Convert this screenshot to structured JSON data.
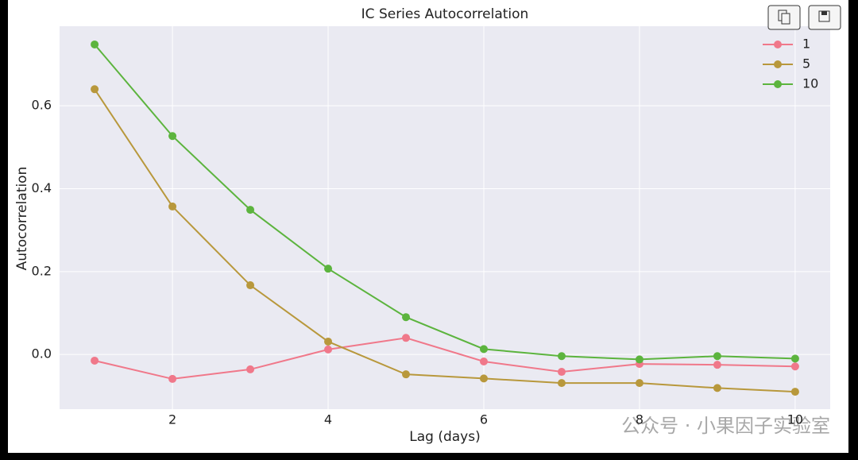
{
  "chart_data": {
    "type": "line",
    "title": "IC Series Autocorrelation",
    "x_label": "Lag (days)",
    "y_label": "Autocorrelation",
    "x": [
      1,
      2,
      3,
      4,
      5,
      6,
      7,
      8,
      9,
      10
    ],
    "series": [
      {
        "name": "1",
        "color": "#f0788a",
        "values": [
          -0.015,
          -0.059,
          -0.036,
          0.012,
          0.04,
          -0.017,
          -0.042,
          -0.023,
          -0.025,
          -0.029
        ]
      },
      {
        "name": "5",
        "color": "#b8983c",
        "values": [
          0.64,
          0.357,
          0.167,
          0.031,
          -0.048,
          -0.058,
          -0.069,
          -0.069,
          -0.081,
          -0.09
        ]
      },
      {
        "name": "10",
        "color": "#5cb43e",
        "values": [
          0.748,
          0.527,
          0.349,
          0.207,
          0.09,
          0.013,
          -0.004,
          -0.012,
          -0.004,
          -0.01
        ]
      }
    ],
    "xlim": [
      0.55,
      10.45
    ],
    "ylim": [
      -0.132,
      0.792
    ],
    "xticks": [
      2,
      4,
      6,
      8,
      10
    ],
    "yticks": [
      {
        "value": 0,
        "label": "0.0"
      },
      0.2,
      0.4,
      0.6
    ],
    "grid": true,
    "legend": "upper right",
    "watermark": "公众号 · 小果因子实验室"
  }
}
